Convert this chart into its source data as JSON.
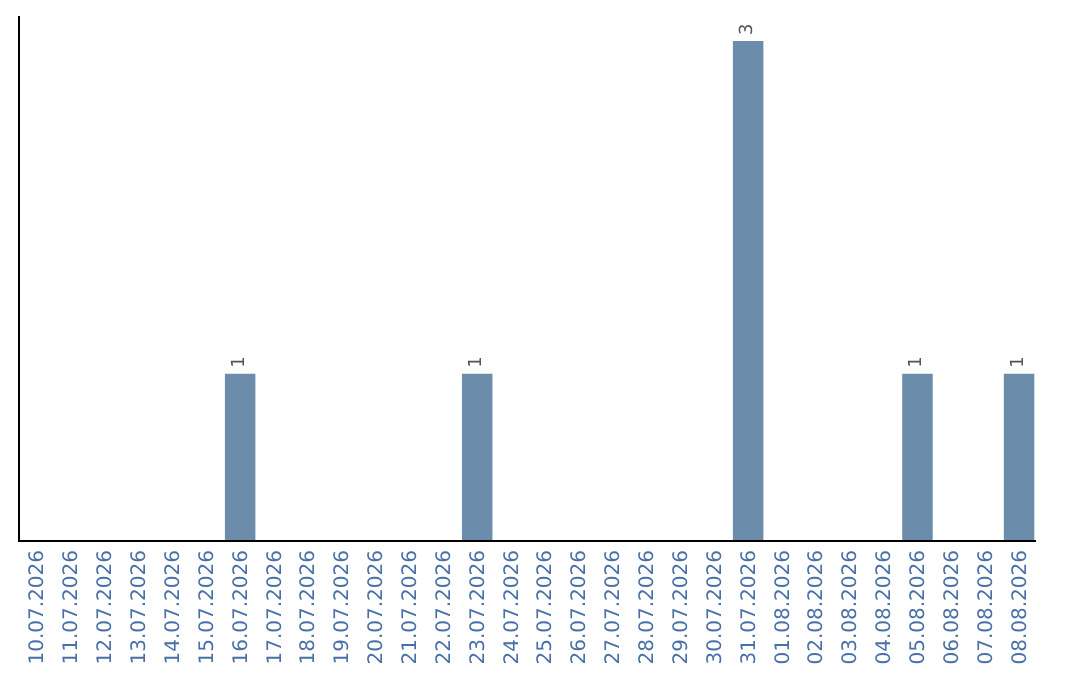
{
  "chart_data": {
    "type": "bar",
    "categories": [
      "10.07.2026",
      "11.07.2026",
      "12.07.2026",
      "13.07.2026",
      "14.07.2026",
      "15.07.2026",
      "16.07.2026",
      "17.07.2026",
      "18.07.2026",
      "19.07.2026",
      "20.07.2026",
      "21.07.2026",
      "22.07.2026",
      "23.07.2026",
      "24.07.2026",
      "25.07.2026",
      "26.07.2026",
      "27.07.2026",
      "28.07.2026",
      "29.07.2026",
      "30.07.2026",
      "31.07.2026",
      "01.08.2026",
      "02.08.2026",
      "03.08.2026",
      "04.08.2026",
      "05.08.2026",
      "06.08.2026",
      "07.08.2026",
      "08.08.2026"
    ],
    "values": [
      0,
      0,
      0,
      0,
      0,
      0,
      1,
      0,
      0,
      0,
      0,
      0,
      0,
      1,
      0,
      0,
      0,
      0,
      0,
      0,
      0,
      3,
      0,
      0,
      0,
      0,
      1,
      0,
      0,
      1
    ],
    "value_labels": [
      null,
      null,
      null,
      null,
      null,
      null,
      "1",
      null,
      null,
      null,
      null,
      null,
      null,
      "1",
      null,
      null,
      null,
      null,
      null,
      null,
      null,
      "3",
      null,
      null,
      null,
      null,
      "1",
      null,
      null,
      "1"
    ],
    "color": "#6b8caa",
    "ylim": [
      0,
      3.15
    ],
    "grid": false,
    "tick_labels": "x"
  }
}
